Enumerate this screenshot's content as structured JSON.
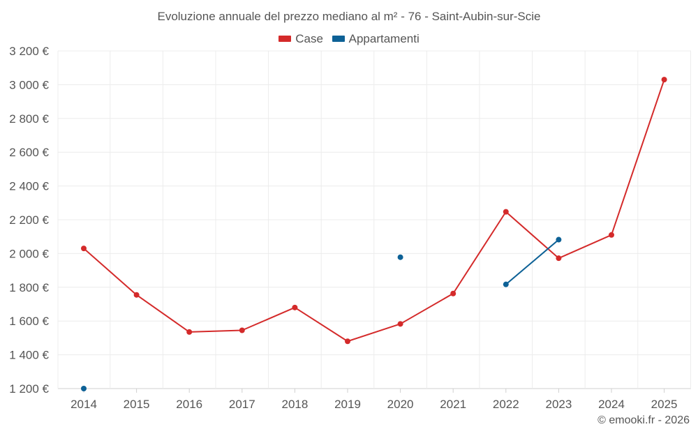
{
  "chart_data": {
    "type": "line",
    "title": "Evoluzione annuale del prezzo mediano al m² - 76 - Saint-Aubin-sur-Scie",
    "categories": [
      "2014",
      "2015",
      "2016",
      "2017",
      "2018",
      "2019",
      "2020",
      "2021",
      "2022",
      "2023",
      "2024",
      "2025"
    ],
    "ylim": [
      1200,
      3200
    ],
    "yticks": [
      1200,
      1400,
      1600,
      1800,
      2000,
      2200,
      2400,
      2600,
      2800,
      3000,
      3200
    ],
    "ytick_labels": [
      "1 200 €",
      "1 400 €",
      "1 600 €",
      "1 800 €",
      "2 000 €",
      "2 200 €",
      "2 400 €",
      "2 600 €",
      "2 800 €",
      "3 000 €",
      "3 200 €"
    ],
    "grid": true,
    "legend_position": "top-center",
    "series": [
      {
        "name": "Case",
        "color": "#d42a2a",
        "values": [
          2030,
          1755,
          1535,
          1545,
          1680,
          1480,
          1583,
          1763,
          2247,
          1972,
          2110,
          3030
        ]
      },
      {
        "name": "Appartamenti",
        "color": "#0d6196",
        "values": [
          1200,
          null,
          null,
          null,
          null,
          null,
          1978,
          null,
          1817,
          2082,
          null,
          null
        ]
      }
    ]
  },
  "credit": "© emooki.fr - 2026"
}
